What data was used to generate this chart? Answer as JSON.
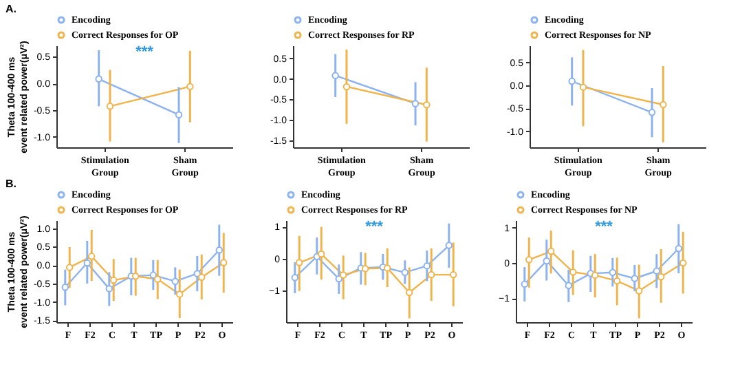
{
  "chart_data": [
    {
      "type": "line",
      "title": "A.",
      "ylabel": "Theta 100-400 ms\nevent related power(μV²)",
      "categories": [
        "Stimulation\nGroup",
        "Sham\nGroup"
      ],
      "legend": "top left",
      "marker": "circle",
      "annotations": [
        "***"
      ],
      "ylim": [
        -1.2,
        0.71
      ],
      "yticks": [
        {
          "value": 0.5,
          "label": "0.5"
        },
        {
          "value": 0,
          "label": "0.0"
        },
        {
          "value": -0.5,
          "label": "-0.5"
        },
        {
          "value": -1,
          "label": "-1.0"
        }
      ],
      "series": [
        {
          "name": "Encoding",
          "color": "#8cb3ef",
          "values": [
            0.08,
            -0.59
          ],
          "errors": [
            [
              -0.43,
              0.62
            ],
            [
              -1.12,
              -0.07
            ]
          ]
        },
        {
          "name": "Correct Responses for OP",
          "color": "#f0b44c",
          "values": [
            -0.43,
            -0.06
          ],
          "errors": [
            [
              -1.09,
              0.25
            ],
            [
              -0.73,
              0.61
            ]
          ]
        }
      ]
    },
    {
      "type": "line",
      "categories": [
        "Stimulation\nGroup",
        "Sham\nGroup"
      ],
      "legend": "top left",
      "marker": "circle",
      "ylim": [
        -1.66,
        0.81
      ],
      "yticks": [
        {
          "value": 0.5,
          "label": "0.5"
        },
        {
          "value": 0,
          "label": "0.0"
        },
        {
          "value": -0.5,
          "label": "-0.5"
        },
        {
          "value": -1,
          "label": "-1.0"
        },
        {
          "value": -1.5,
          "label": "-1.5"
        }
      ],
      "series": [
        {
          "name": "Encoding",
          "color": "#8cb3ef",
          "values": [
            0.08,
            -0.6
          ],
          "errors": [
            [
              -0.44,
              0.6
            ],
            [
              -1.13,
              -0.08
            ]
          ]
        },
        {
          "name": "Correct Responses for RP",
          "color": "#f0b44c",
          "values": [
            -0.19,
            -0.63
          ],
          "errors": [
            [
              -1.09,
              0.71
            ],
            [
              -1.52,
              0.27
            ]
          ]
        }
      ]
    },
    {
      "type": "line",
      "categories": [
        "Stimulation\nGroup",
        "Sham\nGroup"
      ],
      "legend": "top left",
      "marker": "circle",
      "ylim": [
        -1.35,
        0.87
      ],
      "yticks": [
        {
          "value": 0.5,
          "label": "0.5"
        },
        {
          "value": 0,
          "label": "0.0"
        },
        {
          "value": -0.5,
          "label": "-0.5"
        },
        {
          "value": -1,
          "label": "-1.0"
        }
      ],
      "series": [
        {
          "name": "Encoding",
          "color": "#8cb3ef",
          "values": [
            0.09,
            -0.59
          ],
          "errors": [
            [
              -0.44,
              0.61
            ],
            [
              -1.13,
              -0.06
            ]
          ]
        },
        {
          "name": "Correct Responses for NP",
          "color": "#f0b44c",
          "values": [
            -0.04,
            -0.42
          ],
          "errors": [
            [
              -0.89,
              0.77
            ],
            [
              -1.24,
              0.42
            ]
          ]
        }
      ]
    },
    {
      "type": "line",
      "title": "B.",
      "ylabel": "Theta 100-400 ms\nevent related power(μV²)",
      "categories": [
        "F",
        "F2",
        "C",
        "T",
        "TP",
        "P",
        "P2",
        "O"
      ],
      "legend": "top left",
      "marker": "circle",
      "ylim": [
        -1.55,
        1.22
      ],
      "yticks": [
        {
          "value": 1,
          "label": "1.0"
        },
        {
          "value": 0.5,
          "label": "0.5"
        },
        {
          "value": 0,
          "label": "0.0"
        },
        {
          "value": -0.5,
          "label": "-0.5"
        },
        {
          "value": -1,
          "label": "-1.0"
        },
        {
          "value": -1.5,
          "label": "-1.5"
        }
      ],
      "series": [
        {
          "name": "Encoding",
          "color": "#8cb3ef",
          "values": [
            -0.6,
            0.06,
            -0.64,
            -0.3,
            -0.27,
            -0.44,
            -0.23,
            0.41
          ],
          "errors": [
            [
              -1.09,
              -0.12
            ],
            [
              -0.5,
              0.66
            ],
            [
              -1.11,
              -0.19
            ],
            [
              -0.82,
              0.2
            ],
            [
              -0.67,
              0.14
            ],
            [
              -0.8,
              -0.06
            ],
            [
              -0.71,
              0.25
            ],
            [
              -0.29,
              1.1
            ]
          ]
        },
        {
          "name": "Correct Responses for OP",
          "color": "#f0b44c",
          "values": [
            -0.06,
            0.24,
            -0.41,
            -0.3,
            -0.38,
            -0.79,
            -0.33,
            0.07
          ],
          "errors": [
            [
              -0.62,
              0.49
            ],
            [
              -0.43,
              0.96
            ],
            [
              -0.97,
              0.17
            ],
            [
              -0.83,
              0.2
            ],
            [
              -0.92,
              0.14
            ],
            [
              -1.44,
              -0.12
            ],
            [
              -0.93,
              0.29
            ],
            [
              -0.75,
              0.88
            ]
          ]
        }
      ]
    },
    {
      "type": "line",
      "categories": [
        "F",
        "F2",
        "C",
        "T",
        "TP",
        "P",
        "P2",
        "O"
      ],
      "legend": "top left",
      "marker": "circle",
      "annotations": [
        "***"
      ],
      "ylim": [
        -2,
        1.2
      ],
      "yticks": [
        1,
        0,
        -1
      ],
      "series": [
        {
          "name": "Encoding",
          "color": "#8cb3ef",
          "values": [
            -0.6,
            0.06,
            -0.64,
            -0.3,
            -0.27,
            -0.44,
            -0.23,
            0.41
          ],
          "errors": [
            [
              -1.09,
              -0.12
            ],
            [
              -0.5,
              0.66
            ],
            [
              -1.11,
              -0.19
            ],
            [
              -0.82,
              0.2
            ],
            [
              -0.67,
              0.14
            ],
            [
              -0.8,
              -0.06
            ],
            [
              -0.71,
              0.25
            ],
            [
              -0.29,
              1.1
            ]
          ]
        },
        {
          "name": "Correct Responses for RP",
          "color": "#f0b44c",
          "values": [
            -0.13,
            0.14,
            -0.52,
            -0.32,
            -0.3,
            -1.07,
            -0.51,
            -0.51
          ],
          "errors": [
            [
              -1.02,
              0.71
            ],
            [
              -0.66,
              0.99
            ],
            [
              -1.28,
              0.09
            ],
            [
              -0.84,
              0.18
            ],
            [
              -0.9,
              0.32
            ],
            [
              -1.88,
              -0.28
            ],
            [
              -1.33,
              0.32
            ],
            [
              -1.5,
              0.5
            ]
          ]
        }
      ]
    },
    {
      "type": "line",
      "categories": [
        "F",
        "F2",
        "C",
        "T",
        "TP",
        "P",
        "P2",
        "O"
      ],
      "legend": "top left",
      "marker": "circle",
      "annotations": [
        "***"
      ],
      "ylim": [
        -1.68,
        1.21
      ],
      "yticks": [
        1,
        0,
        -1
      ],
      "series": [
        {
          "name": "Encoding",
          "color": "#8cb3ef",
          "values": [
            -0.6,
            0.06,
            -0.64,
            -0.3,
            -0.27,
            -0.44,
            -0.23,
            0.41
          ],
          "errors": [
            [
              -1.09,
              -0.12
            ],
            [
              -0.5,
              0.66
            ],
            [
              -1.11,
              -0.19
            ],
            [
              -0.82,
              0.2
            ],
            [
              -0.67,
              0.14
            ],
            [
              -0.8,
              -0.06
            ],
            [
              -0.71,
              0.25
            ],
            [
              -0.29,
              1.1
            ]
          ]
        },
        {
          "name": "Correct Responses for NP",
          "color": "#f0b44c",
          "values": [
            0.09,
            0.33,
            -0.26,
            -0.35,
            -0.51,
            -0.79,
            -0.39,
            0.0
          ],
          "errors": [
            [
              -0.7,
              0.72
            ],
            [
              -0.3,
              0.92
            ],
            [
              -0.91,
              0.36
            ],
            [
              -0.98,
              0.25
            ],
            [
              -1.2,
              0.15
            ],
            [
              -1.57,
              -0.05
            ],
            [
              -1.13,
              0.39
            ],
            [
              -0.87,
              0.88
            ]
          ]
        }
      ]
    }
  ]
}
